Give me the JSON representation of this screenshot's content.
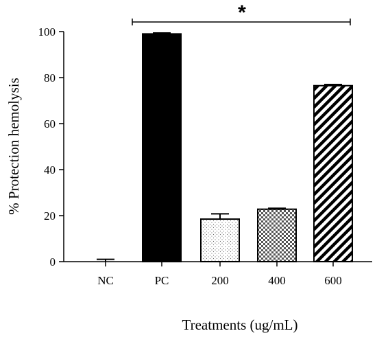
{
  "chart_data": {
    "type": "bar",
    "xlabel": "Treatments (ug/mL)",
    "ylabel": "% Protection hemolysis",
    "ylim": [
      0,
      100
    ],
    "yticks": [
      "0",
      "20",
      "40",
      "60",
      "80",
      "100"
    ],
    "categories": [
      "NC",
      "PC",
      "200",
      "400",
      "600"
    ],
    "values": [
      0,
      99,
      18.5,
      22.8,
      76.5
    ],
    "errors": [
      1.0,
      0.4,
      2.3,
      0.4,
      0.5
    ],
    "fills": [
      "none",
      "solid-black",
      "dotted",
      "checkered",
      "diagonal-stripes"
    ],
    "significance": {
      "label": "*",
      "from": "PC",
      "to": "600"
    },
    "grid": false
  }
}
